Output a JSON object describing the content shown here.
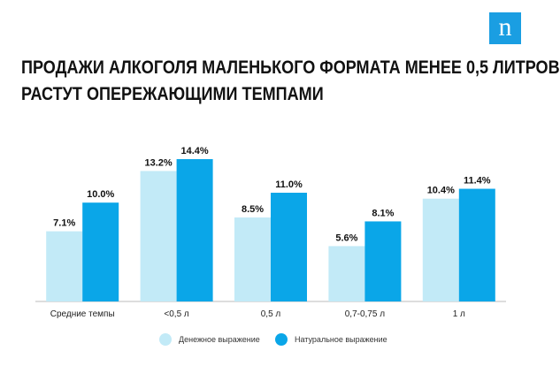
{
  "logo": {
    "glyph": "n"
  },
  "title_lines": [
    "ПРОДАЖИ АЛКОГОЛЯ МАЛЕНЬКОГО ФОРМАТА МЕНЕЕ 0,5 ЛИТРОВ",
    "РАСТУТ ОПЕРЕЖАЮЩИМИ ТЕМПАМИ"
  ],
  "colors": {
    "series1": "#c2eaf7",
    "series2": "#0aa6e8",
    "logo_bg": "#1a9ee2",
    "axis": "#bbbbbb"
  },
  "chart_data": {
    "type": "bar",
    "title": "ПРОДАЖИ АЛКОГОЛЯ МАЛЕНЬКОГО ФОРМАТА МЕНЕЕ 0,5 ЛИТРОВ РАСТУТ ОПЕРЕЖАЮЩИМИ ТЕМПАМИ",
    "categories": [
      "Средние темпы",
      "<0,5 л",
      "0,5 л",
      "0,7-0,75 л",
      "1 л"
    ],
    "series": [
      {
        "name": "Денежное выражение",
        "values": [
          7.1,
          13.2,
          8.5,
          5.6,
          10.4
        ],
        "labels": [
          "7.1%",
          "13.2%",
          "8.5%",
          "5.6%",
          "10.4%"
        ],
        "color": "#c2eaf7"
      },
      {
        "name": "Натуральное выражение",
        "values": [
          10.0,
          14.4,
          11.0,
          8.1,
          11.4
        ],
        "labels": [
          "10.0%",
          "14.4%",
          "11.0%",
          "8.1%",
          "11.4%"
        ],
        "color": "#0aa6e8"
      }
    ],
    "ylim": [
      0,
      14.4
    ],
    "grid": false,
    "legend_position": "bottom"
  }
}
